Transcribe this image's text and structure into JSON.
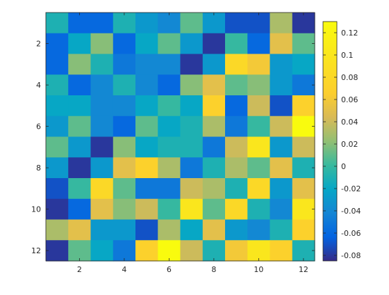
{
  "chart_data": {
    "type": "heatmap",
    "title": "",
    "xlabel": "",
    "ylabel": "",
    "colormap": "parula",
    "color_limits": [
      -0.085,
      0.13
    ],
    "x_ticks": [
      "2",
      "4",
      "6",
      "8",
      "10",
      "12"
    ],
    "y_ticks": [
      "2",
      "4",
      "6",
      "8",
      "10",
      "12"
    ],
    "colorbar_ticks": [
      "-0.08",
      "-0.06",
      "-0.04",
      "-0.02",
      "0",
      "0.02",
      "0.04",
      "0.06",
      "0.08",
      "0.1",
      "0.12"
    ],
    "rows": 12,
    "cols": 12,
    "values": [
      [
        -0.01,
        -0.06,
        -0.06,
        -0.01,
        -0.03,
        -0.04,
        0.01,
        -0.03,
        -0.07,
        -0.07,
        0.03,
        -0.08
      ],
      [
        -0.06,
        -0.02,
        0.02,
        -0.06,
        -0.02,
        0.01,
        -0.03,
        -0.08,
        0.0,
        -0.06,
        0.05,
        0.01
      ],
      [
        -0.06,
        0.02,
        -0.01,
        -0.05,
        -0.04,
        -0.04,
        -0.08,
        -0.03,
        0.08,
        0.06,
        -0.03,
        -0.02
      ],
      [
        -0.01,
        -0.06,
        -0.04,
        -0.01,
        -0.04,
        -0.06,
        0.02,
        0.05,
        0.01,
        0.02,
        -0.03,
        -0.05
      ],
      [
        -0.02,
        -0.02,
        -0.04,
        -0.04,
        -0.02,
        0.0,
        -0.02,
        0.07,
        -0.06,
        0.04,
        -0.07,
        0.07
      ],
      [
        -0.03,
        0.01,
        -0.04,
        -0.06,
        0.01,
        -0.02,
        -0.01,
        0.03,
        -0.05,
        0.0,
        0.04,
        0.13
      ],
      [
        0.01,
        -0.03,
        -0.08,
        0.02,
        -0.02,
        -0.01,
        -0.01,
        -0.05,
        0.04,
        0.1,
        -0.03,
        0.04
      ],
      [
        -0.03,
        -0.08,
        -0.03,
        0.05,
        0.07,
        0.03,
        -0.05,
        -0.01,
        0.03,
        0.01,
        0.05,
        -0.01
      ],
      [
        -0.07,
        0.0,
        0.08,
        0.01,
        -0.05,
        -0.05,
        0.04,
        0.03,
        -0.01,
        0.08,
        -0.03,
        0.05
      ],
      [
        -0.08,
        -0.06,
        0.05,
        0.02,
        0.04,
        0.0,
        0.1,
        0.01,
        0.08,
        -0.01,
        -0.04,
        0.1
      ],
      [
        0.03,
        0.05,
        -0.03,
        -0.03,
        -0.07,
        0.03,
        -0.02,
        0.05,
        -0.03,
        -0.04,
        -0.01,
        0.07
      ],
      [
        -0.08,
        0.01,
        -0.02,
        -0.05,
        0.07,
        0.13,
        0.04,
        -0.01,
        0.06,
        0.1,
        0.07,
        -0.01
      ]
    ]
  }
}
